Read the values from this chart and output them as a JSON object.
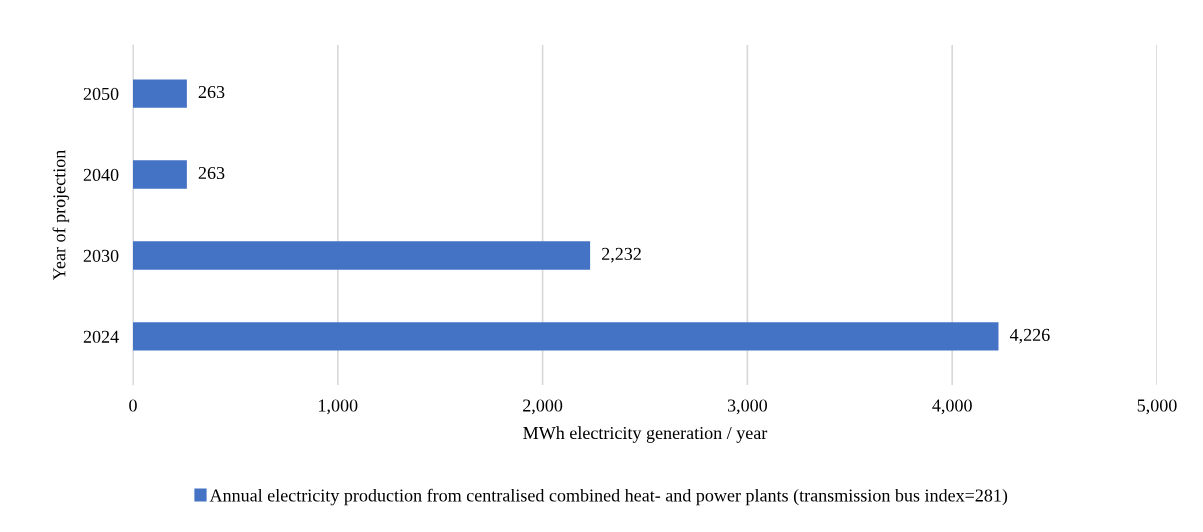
{
  "chart_data": {
    "type": "bar",
    "orientation": "horizontal",
    "categories": [
      "2050",
      "2040",
      "2030",
      "2024"
    ],
    "series": [
      {
        "name": "Annual electricity production from centralised combined heat- and power plants (transmission bus index=281)",
        "color": "#4472c4",
        "values": [
          263,
          263,
          2232,
          4226
        ],
        "value_labels": [
          "263",
          "263",
          "2,232",
          "4,226"
        ]
      }
    ],
    "xlim": [
      0,
      5000
    ],
    "xticks": [
      0,
      {
        "value": 1000,
        "label": "1,000"
      },
      {
        "value": 2000,
        "label": "2,000"
      },
      {
        "value": 3000,
        "label": "3,000"
      },
      {
        "value": 4000,
        "label": "4,000"
      },
      {
        "value": 5000,
        "label": "5,000"
      }
    ],
    "xlabel": "MWh electricity generation / year",
    "ylabel": "Year of projection",
    "grid": "x",
    "legend": "bottom"
  }
}
